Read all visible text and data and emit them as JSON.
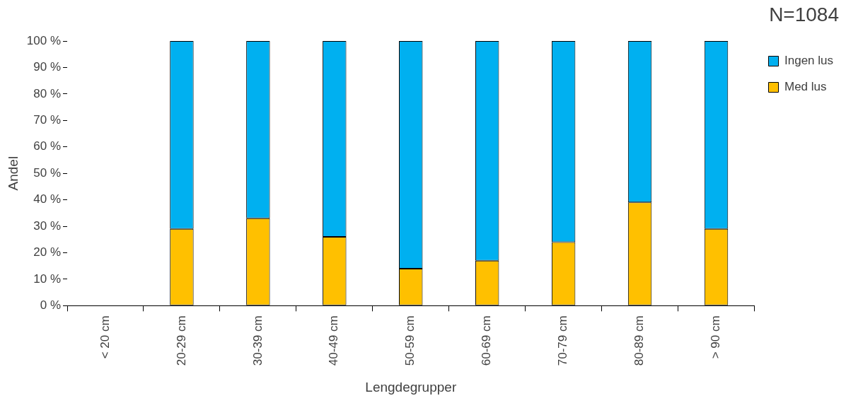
{
  "chart_data": {
    "type": "bar",
    "stacked": true,
    "xlabel": "Lengdegrupper",
    "ylabel": "Andel",
    "annotations": [
      "N=1084"
    ],
    "categories": [
      "< 20 cm",
      "20-29 cm",
      "30-39 cm",
      "40-49 cm",
      "50-59 cm",
      "60-69 cm",
      "70-79 cm",
      "80-89 cm",
      "> 90 cm"
    ],
    "series": [
      {
        "name": "Med lus",
        "color": "#ffc000",
        "values": [
          null,
          29,
          33,
          26,
          14,
          17,
          24,
          39,
          29
        ]
      },
      {
        "name": "Ingen lus",
        "color": "#00b0f0",
        "values": [
          null,
          71,
          67,
          74,
          86,
          83,
          76,
          61,
          71
        ]
      }
    ],
    "ylim": [
      0,
      100
    ],
    "yticks": [
      {
        "value": 0,
        "label": "0 %"
      },
      {
        "value": 10,
        "label": "10 %"
      },
      {
        "value": 20,
        "label": "20 %"
      },
      {
        "value": 30,
        "label": "30 %"
      },
      {
        "value": 40,
        "label": "40 %"
      },
      {
        "value": 50,
        "label": "50 %"
      },
      {
        "value": 60,
        "label": "60 %"
      },
      {
        "value": 70,
        "label": "70 %"
      },
      {
        "value": 80,
        "label": "80 %"
      },
      {
        "value": 90,
        "label": "90 %"
      },
      {
        "value": 100,
        "label": "100 %"
      }
    ],
    "grid": false,
    "legend": "top right"
  }
}
